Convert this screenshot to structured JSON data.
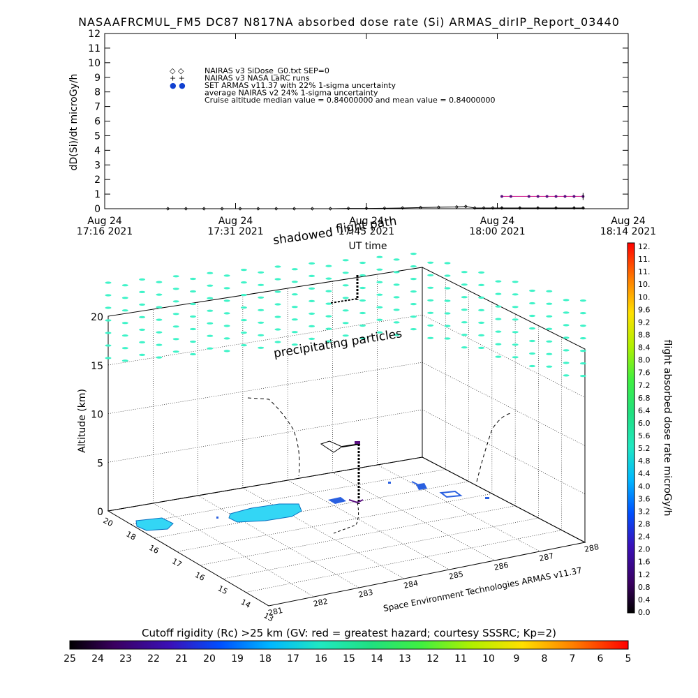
{
  "title": "NASAAFRCMUL_FM5 DC87 N817NA absorbed dose rate (Si) ARMAS_dirIP_Report_03440",
  "top_plot": {
    "ylabel": "dD(Si)/dt microGy/h",
    "xlabel": "UT time",
    "y_ticks": [
      "0",
      "1",
      "2",
      "3",
      "4",
      "5",
      "6",
      "7",
      "8",
      "9",
      "10",
      "11",
      "12"
    ],
    "x_ticks": [
      {
        "line1": "Aug 24",
        "line2": "17:16 2021"
      },
      {
        "line1": "Aug 24",
        "line2": "17:31 2021"
      },
      {
        "line1": "Aug 24",
        "line2": "17:45 2021"
      },
      {
        "line1": "Aug 24",
        "line2": "18:00 2021"
      },
      {
        "line1": "Aug 24",
        "line2": "18:14 2021"
      }
    ],
    "legend": [
      {
        "symbol": "◇ ◇",
        "text": "NAIRAS v3 SiDose_G0.txt SEP=0"
      },
      {
        "symbol": "+ +",
        "text": "NAIRAS v3 NASA LaRC runs"
      },
      {
        "symbol": "● ●",
        "text": "SET ARMAS v11.37 with 22% 1-sigma uncertainty"
      },
      {
        "symbol": "",
        "text": "average NAIRAS v2 24% 1-sigma uncertainty"
      },
      {
        "symbol": "",
        "text": "Cruise altitude median value = 0.84000000 and mean value = 0.84000000"
      }
    ]
  },
  "chart_data": [
    {
      "type": "scatter",
      "title": "NASAAFRCMUL_FM5 DC87 N817NA absorbed dose rate (Si) ARMAS_dirIP_Report_03440",
      "xlabel": "UT time",
      "ylabel": "dD(Si)/dt microGy/h",
      "xlim": [
        "17:16",
        "18:14"
      ],
      "ylim": [
        0,
        12
      ],
      "series": [
        {
          "name": "NAIRAS v3 SiDose_G0.txt SEP=0",
          "x": [
            "17:23",
            "17:25",
            "17:27",
            "17:29",
            "17:31",
            "17:33",
            "17:35",
            "17:37",
            "17:39",
            "17:41",
            "17:43",
            "17:45",
            "17:47",
            "17:49",
            "17:51",
            "17:53",
            "17:55",
            "17:56",
            "17:57",
            "17:58",
            "17:59",
            "18:00",
            "18:02",
            "18:04",
            "18:06",
            "18:08",
            "18:09"
          ],
          "values": [
            0.0,
            0.0,
            0.0,
            0.0,
            0.0,
            0.0,
            0.0,
            0.0,
            0.0,
            0.0,
            0.02,
            0.02,
            0.03,
            0.05,
            0.08,
            0.1,
            0.12,
            0.15,
            0.05,
            0.05,
            0.05,
            0.05,
            0.05,
            0.05,
            0.05,
            0.05,
            0.05
          ]
        },
        {
          "name": "NAIRAS v3 NASA LaRC runs",
          "x": [
            "18:00",
            "18:02",
            "18:04",
            "18:06",
            "18:08",
            "18:09"
          ],
          "values": [
            0.05,
            0.05,
            0.05,
            0.05,
            0.05,
            0.05
          ]
        },
        {
          "name": "SET ARMAS v11.37 with 22% 1-sigma uncertainty",
          "x": [
            "18:00",
            "18:01",
            "18:03",
            "18:04",
            "18:05",
            "18:06",
            "18:07",
            "18:08",
            "18:09"
          ],
          "values": [
            0.84,
            0.84,
            0.84,
            0.84,
            0.84,
            0.84,
            0.84,
            0.84,
            0.84
          ]
        }
      ]
    }
  ],
  "bottom_plot": {
    "zlabel": "Altitude (km)",
    "z_ticks": [
      "0",
      "5",
      "10",
      "15",
      "20"
    ],
    "lat_ticks": [
      "20",
      "18",
      "16",
      "17",
      "16",
      "15",
      "14",
      "13"
    ],
    "lon_ticks": [
      "281",
      "282",
      "283",
      "284",
      "285",
      "286",
      "287",
      "288"
    ],
    "annotations": {
      "shadowed": "shadowed",
      "flight_path": "flight path",
      "precipitating": "precipitating particles",
      "credit": "Space Environment Technologies ARMAS v11.37"
    }
  },
  "dose_colorbar": {
    "label": "flight absorbed dose rate microGy/h",
    "ticks": [
      "12.",
      "11.",
      "11.",
      "10.",
      "10.",
      "9.6",
      "9.2",
      "8.8",
      "8.4",
      "8.0",
      "7.6",
      "7.2",
      "6.8",
      "6.4",
      "6.0",
      "5.6",
      "5.2",
      "4.8",
      "4.4",
      "4.0",
      "3.6",
      "3.2",
      "2.8",
      "2.4",
      "2.0",
      "1.6",
      "1.2",
      "0.8",
      "0.4",
      "0.0"
    ]
  },
  "rigidity_colorbar": {
    "label": "Cutoff rigidity (Rc) >25 km (GV: red = greatest hazard; courtesy SSSRC; Kp=2)",
    "ticks": [
      "25",
      "24",
      "23",
      "22",
      "21",
      "20",
      "19",
      "18",
      "17",
      "16",
      "15",
      "14",
      "13",
      "12",
      "11",
      "10",
      "9",
      "8",
      "7",
      "6",
      "5"
    ]
  },
  "colors": {
    "particles": "#3ff3c8",
    "rigidity_region": "#33d6f5",
    "flight_path": "#000000",
    "armas_points": "#5a1080",
    "armas_line": "#d02090"
  }
}
